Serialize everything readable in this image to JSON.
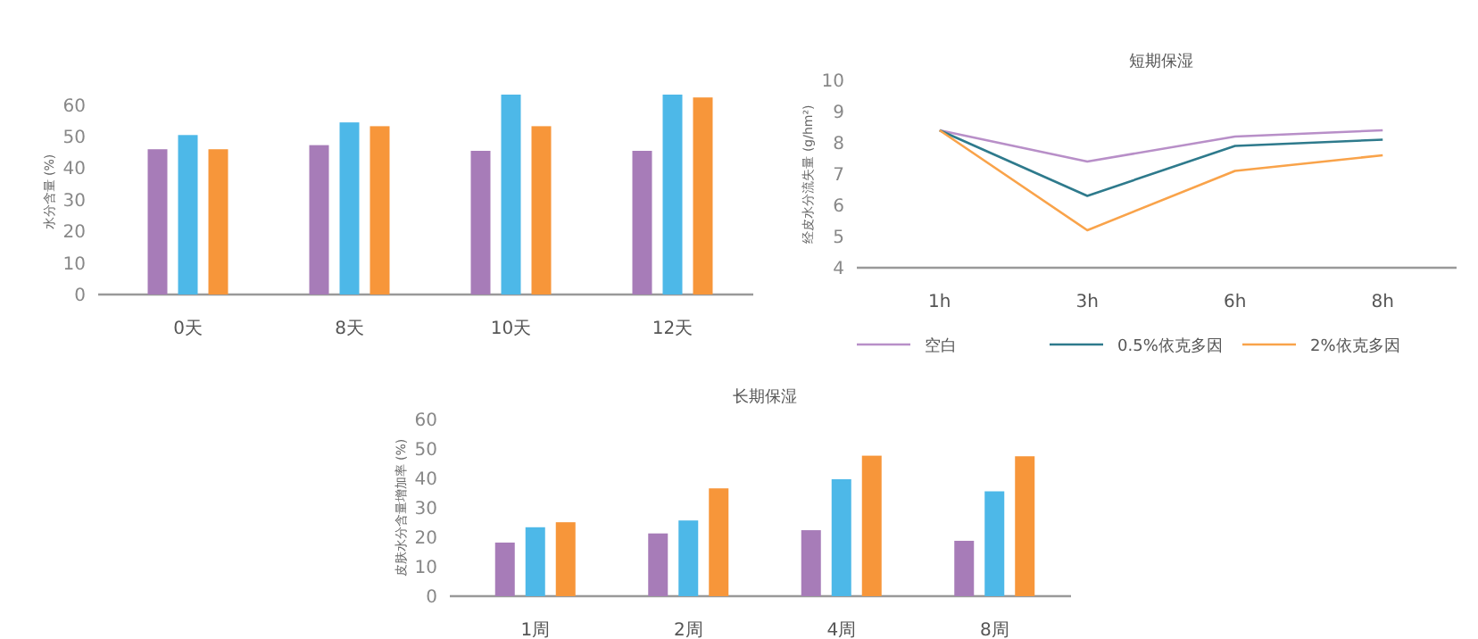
{
  "chart_data": [
    {
      "type": "bar",
      "ylabel": "水分含量 (%)",
      "categories": [
        "0天",
        "8天",
        "10天",
        "12天"
      ],
      "ylim": [
        0,
        65
      ],
      "yticks": [
        0,
        10,
        20,
        30,
        40,
        50,
        60
      ],
      "grid": false,
      "legend": false,
      "series": [
        {
          "color": "#a77cb8",
          "values": [
            46,
            47.3,
            45.5,
            45.5
          ]
        },
        {
          "color": "#4db8e8",
          "values": [
            50.5,
            54.5,
            63.3,
            63.3
          ]
        },
        {
          "color": "#f7963a",
          "values": [
            46,
            53.3,
            53.3,
            62.4
          ]
        }
      ]
    },
    {
      "type": "line",
      "title": "短期保湿",
      "ylabel": "经皮水分流失量 (g/hm²)",
      "categories": [
        "1h",
        "3h",
        "6h",
        "8h"
      ],
      "ylim": [
        4,
        10
      ],
      "yticks": [
        4,
        5,
        6,
        7,
        8,
        9,
        10
      ],
      "grid": false,
      "legend": "bottom",
      "marker": "none",
      "line_style": "solid",
      "series": [
        {
          "name": "空白",
          "color": "#b88fc8",
          "values": [
            8.4,
            7.4,
            8.2,
            8.4
          ]
        },
        {
          "name": "0.5%依克多因",
          "color": "#2e7a8c",
          "values": [
            8.4,
            6.3,
            7.9,
            8.1
          ]
        },
        {
          "name": "2%依克多因",
          "color": "#f9a34a",
          "values": [
            8.4,
            5.2,
            7.1,
            7.6
          ]
        }
      ]
    },
    {
      "type": "bar",
      "title": "长期保湿",
      "ylabel": "皮肤水分含量增加率 (%)",
      "categories": [
        "1周",
        "2周",
        "4周",
        "8周"
      ],
      "ylim": [
        0,
        60
      ],
      "yticks": [
        0,
        10,
        20,
        30,
        40,
        50,
        60
      ],
      "grid": false,
      "legend": false,
      "series": [
        {
          "color": "#a77cb8",
          "values": [
            18.2,
            21.3,
            22.4,
            18.8
          ]
        },
        {
          "color": "#4db8e8",
          "values": [
            23.4,
            25.7,
            39.7,
            35.6
          ]
        },
        {
          "color": "#f7963a",
          "values": [
            25.1,
            36.6,
            47.7,
            47.5
          ]
        }
      ]
    }
  ]
}
